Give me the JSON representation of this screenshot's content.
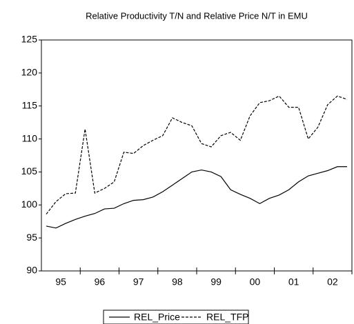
{
  "chart_data": {
    "type": "line",
    "title": "Relative Productivity T/N and Relative Price N/T in EMU",
    "x": [
      1995.125,
      1995.375,
      1995.625,
      1995.875,
      1996.125,
      1996.375,
      1996.625,
      1996.875,
      1997.125,
      1997.375,
      1997.625,
      1997.875,
      1998.125,
      1998.375,
      1998.625,
      1998.875,
      1999.125,
      1999.375,
      1999.625,
      1999.875,
      2000.125,
      2000.375,
      2000.625,
      2000.875,
      2001.125,
      2001.375,
      2001.625,
      2001.875,
      2002.125,
      2002.375,
      2002.625,
      2002.875
    ],
    "series": [
      {
        "name": "REL_Price",
        "color": "#000000",
        "style": "solid",
        "values": [
          96.8,
          96.5,
          97.2,
          97.8,
          98.3,
          98.7,
          99.4,
          99.5,
          100.2,
          100.7,
          100.8,
          101.2,
          102.0,
          103.0,
          104.0,
          105.0,
          105.3,
          105.0,
          104.3,
          102.3,
          101.6,
          101.0,
          100.2,
          101.0,
          101.5,
          102.3,
          103.5,
          104.4,
          104.8,
          105.2,
          105.8,
          105.8
        ]
      },
      {
        "name": "REL_TFP",
        "color": "#000000",
        "style": "dashed",
        "values": [
          98.6,
          100.5,
          101.7,
          101.8,
          111.5,
          101.8,
          102.5,
          103.5,
          108.0,
          107.8,
          109.0,
          109.8,
          110.5,
          113.2,
          112.5,
          112.0,
          109.3,
          108.8,
          110.5,
          111.0,
          109.8,
          113.5,
          115.5,
          115.8,
          116.5,
          114.8,
          114.8,
          110.0,
          111.8,
          115.2,
          116.5,
          116.0
        ]
      }
    ],
    "xlim": [
      1995,
      2003
    ],
    "xticks": [
      {
        "value": 1995.5,
        "label": "95"
      },
      {
        "value": 1996.5,
        "label": "96"
      },
      {
        "value": 1997.5,
        "label": "97"
      },
      {
        "value": 1998.5,
        "label": "98"
      },
      {
        "value": 1999.5,
        "label": "99"
      },
      {
        "value": 2000.5,
        "label": "00"
      },
      {
        "value": 2001.5,
        "label": "01"
      },
      {
        "value": 2002.5,
        "label": "02"
      }
    ],
    "ylim": [
      90,
      125
    ],
    "yticks": [
      90,
      95,
      100,
      105,
      110,
      115,
      120,
      125
    ],
    "grid": false
  }
}
